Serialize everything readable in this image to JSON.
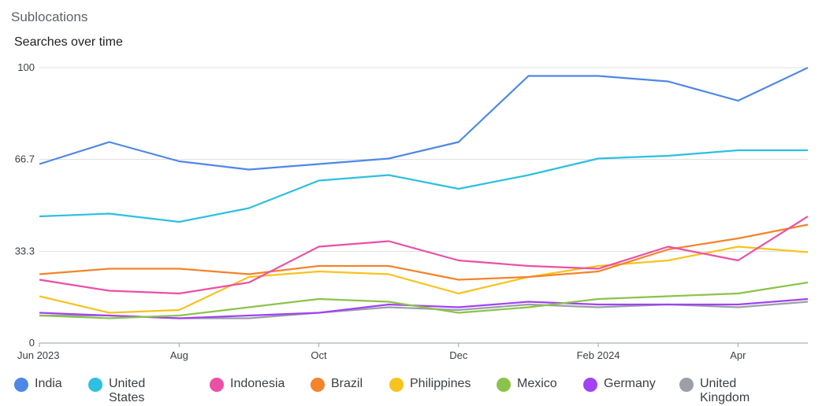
{
  "header": {
    "section_title": "Sublocations"
  },
  "chart_data": {
    "type": "line",
    "title": "Searches over time",
    "xlabel": "",
    "ylabel": "",
    "ylim": [
      0,
      100
    ],
    "yticks": [
      0,
      33.3,
      66.7,
      100
    ],
    "ytick_labels": [
      "0",
      "33.3",
      "66.7",
      "100"
    ],
    "x": [
      "2023-06",
      "2023-07",
      "2023-08",
      "2023-09",
      "2023-10",
      "2023-11",
      "2023-12",
      "2024-01",
      "2024-02",
      "2024-03",
      "2024-04",
      "2024-05"
    ],
    "xticks": [
      {
        "index": 0,
        "label": "Jun 2023"
      },
      {
        "index": 2,
        "label": "Aug"
      },
      {
        "index": 4,
        "label": "Oct"
      },
      {
        "index": 6,
        "label": "Dec"
      },
      {
        "index": 8,
        "label": "Feb 2024"
      },
      {
        "index": 10,
        "label": "Apr"
      }
    ],
    "grid": true,
    "legend_position": "bottom",
    "series": [
      {
        "name": "India",
        "color": "#4e87e8",
        "values": [
          65,
          73,
          66,
          63,
          65,
          67,
          73,
          97,
          97,
          95,
          88,
          100
        ]
      },
      {
        "name": "United States",
        "color": "#2dc0e0",
        "values": [
          46,
          47,
          44,
          49,
          59,
          61,
          56,
          61,
          67,
          68,
          70,
          70
        ]
      },
      {
        "name": "Indonesia",
        "color": "#ec4fa6",
        "values": [
          23,
          19,
          18,
          22,
          35,
          37,
          30,
          28,
          27,
          35,
          30,
          46
        ]
      },
      {
        "name": "Brazil",
        "color": "#f4832a",
        "values": [
          25,
          27,
          27,
          25,
          28,
          28,
          23,
          24,
          26,
          34,
          38,
          43
        ]
      },
      {
        "name": "Philippines",
        "color": "#f7c31f",
        "values": [
          17,
          11,
          12,
          24,
          26,
          25,
          18,
          24,
          28,
          30,
          35,
          33
        ]
      },
      {
        "name": "Mexico",
        "color": "#8bc34a",
        "values": [
          10,
          9,
          10,
          13,
          16,
          15,
          11,
          13,
          16,
          17,
          18,
          22
        ]
      },
      {
        "name": "Germany",
        "color": "#a142f4",
        "values": [
          11,
          10,
          9,
          10,
          11,
          14,
          13,
          15,
          14,
          14,
          14,
          16
        ]
      },
      {
        "name": "United Kingdom",
        "color": "#9aa0a6",
        "values": [
          10,
          10,
          9,
          9,
          11,
          13,
          12,
          14,
          13,
          14,
          13,
          15
        ]
      }
    ]
  },
  "legend": {
    "items": [
      {
        "label": "India",
        "color": "#4e87e8"
      },
      {
        "label": "United\nStates",
        "color": "#2dc0e0"
      },
      {
        "label": "Indonesia",
        "color": "#ec4fa6"
      },
      {
        "label": "Brazil",
        "color": "#f4832a"
      },
      {
        "label": "Philippines",
        "color": "#f7c31f"
      },
      {
        "label": "Mexico",
        "color": "#8bc34a"
      },
      {
        "label": "Germany",
        "color": "#a142f4"
      },
      {
        "label": "United\nKingdom",
        "color": "#9aa0a6"
      }
    ]
  }
}
